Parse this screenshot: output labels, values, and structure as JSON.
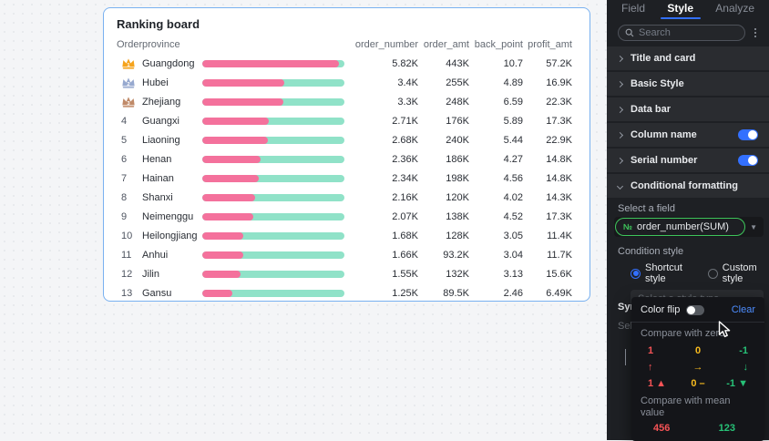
{
  "card": {
    "title": "Ranking board",
    "columns": [
      "Order",
      "province",
      "order_number",
      "order_amt",
      "back_point",
      "profit_amt"
    ],
    "rows": [
      {
        "rank": 1,
        "medal": "gold",
        "province": "Guangdong",
        "bar_pct": 96,
        "order_number": "5.82K",
        "order_amt": "443K",
        "back_point": "10.7",
        "profit_amt": "57.2K"
      },
      {
        "rank": 2,
        "medal": "silver",
        "province": "Hubei",
        "bar_pct": 58,
        "order_number": "3.4K",
        "order_amt": "255K",
        "back_point": "4.89",
        "profit_amt": "16.9K"
      },
      {
        "rank": 3,
        "medal": "bronze",
        "province": "Zhejiang",
        "bar_pct": 57,
        "order_number": "3.3K",
        "order_amt": "248K",
        "back_point": "6.59",
        "profit_amt": "22.3K"
      },
      {
        "rank": 4,
        "medal": null,
        "province": "Guangxi",
        "bar_pct": 47,
        "order_number": "2.71K",
        "order_amt": "176K",
        "back_point": "5.89",
        "profit_amt": "17.3K"
      },
      {
        "rank": 5,
        "medal": null,
        "province": "Liaoning",
        "bar_pct": 46,
        "order_number": "2.68K",
        "order_amt": "240K",
        "back_point": "5.44",
        "profit_amt": "22.9K"
      },
      {
        "rank": 6,
        "medal": null,
        "province": "Henan",
        "bar_pct": 41,
        "order_number": "2.36K",
        "order_amt": "186K",
        "back_point": "4.27",
        "profit_amt": "14.8K"
      },
      {
        "rank": 7,
        "medal": null,
        "province": "Hainan",
        "bar_pct": 40,
        "order_number": "2.34K",
        "order_amt": "198K",
        "back_point": "4.56",
        "profit_amt": "14.8K"
      },
      {
        "rank": 8,
        "medal": null,
        "province": "Shanxi",
        "bar_pct": 37,
        "order_number": "2.16K",
        "order_amt": "120K",
        "back_point": "4.02",
        "profit_amt": "14.3K"
      },
      {
        "rank": 9,
        "medal": null,
        "province": "Neimenggu",
        "bar_pct": 36,
        "order_number": "2.07K",
        "order_amt": "138K",
        "back_point": "4.52",
        "profit_amt": "17.3K"
      },
      {
        "rank": 10,
        "medal": null,
        "province": "Heilongjiang",
        "bar_pct": 29,
        "order_number": "1.68K",
        "order_amt": "128K",
        "back_point": "3.05",
        "profit_amt": "11.4K"
      },
      {
        "rank": 11,
        "medal": null,
        "province": "Anhui",
        "bar_pct": 29,
        "order_number": "1.66K",
        "order_amt": "93.2K",
        "back_point": "3.04",
        "profit_amt": "11.7K"
      },
      {
        "rank": 12,
        "medal": null,
        "province": "Jilin",
        "bar_pct": 27,
        "order_number": "1.55K",
        "order_amt": "132K",
        "back_point": "3.13",
        "profit_amt": "15.6K"
      },
      {
        "rank": 13,
        "medal": null,
        "province": "Gansu",
        "bar_pct": 21,
        "order_number": "1.25K",
        "order_amt": "89.5K",
        "back_point": "2.46",
        "profit_amt": "6.49K"
      }
    ]
  },
  "chart_data": {
    "type": "bar",
    "title": "Ranking board",
    "categories": [
      "Guangdong",
      "Hubei",
      "Zhejiang",
      "Guangxi",
      "Liaoning",
      "Henan",
      "Hainan",
      "Shanxi",
      "Neimenggu",
      "Heilongjiang",
      "Anhui",
      "Jilin",
      "Gansu"
    ],
    "series": [
      {
        "name": "order_number",
        "values": [
          5820,
          3400,
          3300,
          2710,
          2680,
          2360,
          2340,
          2160,
          2070,
          1680,
          1660,
          1550,
          1250
        ]
      },
      {
        "name": "order_amt",
        "values": [
          443000,
          255000,
          248000,
          176000,
          240000,
          186000,
          198000,
          120000,
          138000,
          128000,
          93200,
          132000,
          89500
        ]
      },
      {
        "name": "back_point",
        "values": [
          10.7,
          4.89,
          6.59,
          5.89,
          5.44,
          4.27,
          4.56,
          4.02,
          4.52,
          3.05,
          3.04,
          3.13,
          2.46
        ]
      },
      {
        "name": "profit_amt",
        "values": [
          57200,
          16900,
          22300,
          17300,
          22900,
          14800,
          14800,
          14300,
          17300,
          11400,
          11700,
          15600,
          6490
        ]
      }
    ],
    "legend_position": "none",
    "orientation": "horizontal",
    "bar_metric": "order_number"
  },
  "colors": {
    "bar_fill": "#F4719C",
    "bar_track": "#90E2C8",
    "card_border": "#79B1F0",
    "accent_blue": "#3370FF",
    "field_green": "#3EC65B",
    "cond_red": "#F65356",
    "cond_yellow": "#F7BA1E",
    "cond_green": "#27C277",
    "medals": {
      "gold": "#F5A31C",
      "silver": "#97A9CF",
      "bronze": "#C08A68"
    }
  },
  "panel": {
    "tabs": [
      {
        "label": "Field",
        "active": false
      },
      {
        "label": "Style",
        "active": true
      },
      {
        "label": "Analyze",
        "active": false
      }
    ],
    "search_placeholder": "Search",
    "sections": [
      {
        "label": "Title and card",
        "expanded": false,
        "toggle": false
      },
      {
        "label": "Basic Style",
        "expanded": false,
        "toggle": false
      },
      {
        "label": "Data bar",
        "expanded": false,
        "toggle": false
      },
      {
        "label": "Column name",
        "expanded": false,
        "toggle": true
      },
      {
        "label": "Serial number",
        "expanded": false,
        "toggle": true
      },
      {
        "label": "Conditional formatting",
        "expanded": true,
        "toggle": false
      }
    ],
    "conditional": {
      "select_field_label": "Select a field",
      "field_icon": "№",
      "field_value": "order_number(SUM)",
      "condition_style_label": "Condition style",
      "radios": [
        {
          "label": "Shortcut style",
          "selected": true
        },
        {
          "label": "Custom style",
          "selected": false
        }
      ],
      "style_type_placeholder": "Select a style type"
    },
    "behind": {
      "syn_label": "Syn",
      "sel_label": "Sel"
    },
    "dropdown": {
      "color_flip_label": "Color flip",
      "clear_label": "Clear",
      "compare_zero_label": "Compare with zero",
      "grid_rows": [
        [
          "1",
          "0",
          "-1"
        ],
        [
          "↑",
          "→",
          "↓"
        ],
        [
          "1 ▲",
          "0 –",
          "-1 ▼"
        ]
      ],
      "compare_mean_label": "Compare with mean value",
      "mean_values": [
        "456",
        "123"
      ]
    }
  }
}
